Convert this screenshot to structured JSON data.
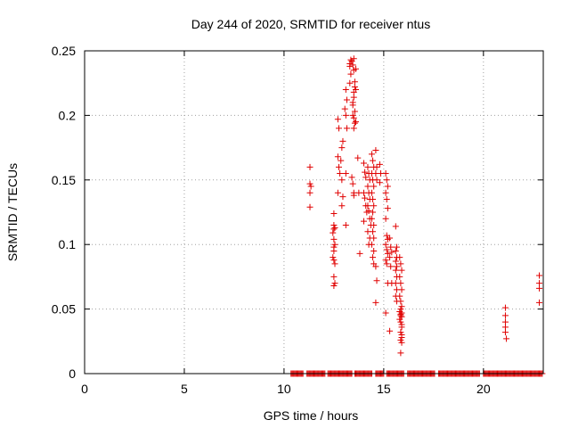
{
  "chart_data": {
    "type": "scatter",
    "title": "Day 244 of 2020, SRMTID for receiver ntus",
    "xlabel": "GPS time / hours",
    "ylabel": "SRMTID / TECUs",
    "xlim": [
      0,
      23
    ],
    "ylim": [
      0,
      0.25
    ],
    "xticks": [
      0,
      5,
      10,
      15,
      20
    ],
    "xtick_labels": [
      "0",
      "5",
      "10",
      "15",
      "20"
    ],
    "yticks": [
      0,
      0.05,
      0.1,
      0.15,
      0.2,
      0.25
    ],
    "ytick_labels": [
      "0",
      "0.05",
      "0.1",
      "0.15",
      "0.2",
      "0.25"
    ],
    "grid": true,
    "marker": "plus",
    "color": "#e00000",
    "series": [
      {
        "x": [
          11.3,
          11.3,
          11.35,
          11.3,
          11.3,
          12.5,
          12.5,
          12.55,
          12.45,
          12.5,
          12.55,
          12.5,
          12.5,
          12.45,
          12.5,
          12.55,
          12.5,
          12.55,
          12.5,
          12.5,
          12.7,
          12.75,
          12.7,
          12.75,
          12.8,
          12.7,
          12.9,
          12.95,
          12.85,
          12.9,
          12.95,
          12.9,
          13.1,
          13.15,
          13.05,
          13.1,
          13.15,
          13.1,
          13.1,
          13.3,
          13.35,
          13.3,
          13.35,
          13.3,
          13.4,
          13.45,
          13.5,
          13.55,
          13.6,
          13.5,
          13.45,
          13.55,
          13.5,
          13.6,
          13.45,
          13.5,
          13.55,
          13.5,
          13.6,
          13.45,
          13.55,
          13.5,
          13.5,
          13.5,
          13.4,
          13.45,
          13.7,
          13.75,
          13.8,
          14.0,
          14.05,
          14.1,
          14.0,
          14.05,
          14.1,
          14.15,
          14.0,
          14.2,
          14.25,
          14.3,
          14.2,
          14.25,
          14.3,
          14.2,
          14.25,
          14.3,
          14.35,
          14.2,
          14.3,
          14.25,
          14.4,
          14.45,
          14.5,
          14.4,
          14.45,
          14.5,
          14.4,
          14.45,
          14.5,
          14.45,
          14.4,
          14.5,
          14.45,
          14.5,
          14.4,
          14.5,
          14.45,
          14.5,
          14.6,
          14.65,
          14.6,
          14.65,
          14.6,
          14.65,
          14.6,
          14.8,
          14.85,
          14.8,
          15.1,
          15.15,
          15.2,
          15.1,
          15.15,
          15.2,
          15.1,
          15.15,
          15.2,
          15.1,
          15.15,
          15.2,
          15.1,
          15.15,
          15.2,
          15.1,
          15.3,
          15.35,
          15.4,
          15.3,
          15.35,
          15.4,
          15.3,
          15.6,
          15.65,
          15.6,
          15.65,
          15.6,
          15.65,
          15.6,
          15.65,
          15.6,
          15.65,
          15.6,
          15.65,
          15.8,
          15.85,
          15.9,
          15.8,
          15.85,
          15.9,
          15.8,
          15.85,
          15.9,
          15.8,
          15.85,
          15.9,
          15.8,
          15.85,
          15.9,
          15.85,
          15.9,
          15.85,
          15.9,
          15.85,
          15.9,
          15.85,
          15.9,
          15.85,
          15.9,
          21.1,
          21.1,
          21.1,
          21.1,
          21.1,
          21.15,
          22.8,
          22.8,
          22.8,
          22.8
        ],
        "y": [
          0.16,
          0.147,
          0.145,
          0.14,
          0.129,
          0.124,
          0.115,
          0.113,
          0.109,
          0.104,
          0.1,
          0.098,
          0.095,
          0.09,
          0.088,
          0.085,
          0.075,
          0.07,
          0.068,
          0.112,
          0.197,
          0.19,
          0.168,
          0.16,
          0.155,
          0.14,
          0.175,
          0.18,
          0.165,
          0.15,
          0.137,
          0.13,
          0.22,
          0.212,
          0.205,
          0.2,
          0.19,
          0.155,
          0.115,
          0.24,
          0.243,
          0.238,
          0.232,
          0.225,
          0.242,
          0.239,
          0.235,
          0.226,
          0.22,
          0.214,
          0.208,
          0.203,
          0.198,
          0.195,
          0.21,
          0.218,
          0.222,
          0.244,
          0.236,
          0.2,
          0.194,
          0.19,
          0.14,
          0.138,
          0.152,
          0.147,
          0.167,
          0.14,
          0.093,
          0.163,
          0.156,
          0.152,
          0.14,
          0.136,
          0.13,
          0.125,
          0.118,
          0.16,
          0.155,
          0.15,
          0.145,
          0.14,
          0.135,
          0.13,
          0.126,
          0.12,
          0.115,
          0.11,
          0.105,
          0.1,
          0.17,
          0.165,
          0.16,
          0.155,
          0.15,
          0.145,
          0.14,
          0.135,
          0.13,
          0.125,
          0.12,
          0.115,
          0.11,
          0.105,
          0.1,
          0.095,
          0.09,
          0.085,
          0.173,
          0.16,
          0.155,
          0.15,
          0.083,
          0.072,
          0.055,
          0.162,
          0.155,
          0.148,
          0.155,
          0.15,
          0.145,
          0.14,
          0.135,
          0.128,
          0.12,
          0.107,
          0.104,
          0.1,
          0.096,
          0.093,
          0.088,
          0.085,
          0.07,
          0.047,
          0.105,
          0.098,
          0.094,
          0.09,
          0.083,
          0.07,
          0.033,
          0.114,
          0.098,
          0.095,
          0.09,
          0.087,
          0.083,
          0.08,
          0.075,
          0.07,
          0.065,
          0.06,
          0.056,
          0.09,
          0.085,
          0.08,
          0.075,
          0.07,
          0.065,
          0.06,
          0.056,
          0.052,
          0.048,
          0.046,
          0.044,
          0.042,
          0.04,
          0.036,
          0.032,
          0.028,
          0.026,
          0.024,
          0.045,
          0.047,
          0.05,
          0.038,
          0.016,
          0.03,
          0.051,
          0.045,
          0.04,
          0.036,
          0.032,
          0.027,
          0.076,
          0.07,
          0.066,
          0.055
        ]
      },
      {
        "name": "",
        "x_range": [
          10.35,
          22.95
        ],
        "y": 0,
        "gaps": [
          [
            11.0,
            11.15
          ],
          [
            12.1,
            12.2
          ],
          [
            13.45,
            13.55
          ],
          [
            14.45,
            14.6
          ],
          [
            15.05,
            15.15
          ],
          [
            16.05,
            16.2
          ],
          [
            17.6,
            17.75
          ],
          [
            19.85,
            20.0
          ]
        ]
      }
    ]
  }
}
